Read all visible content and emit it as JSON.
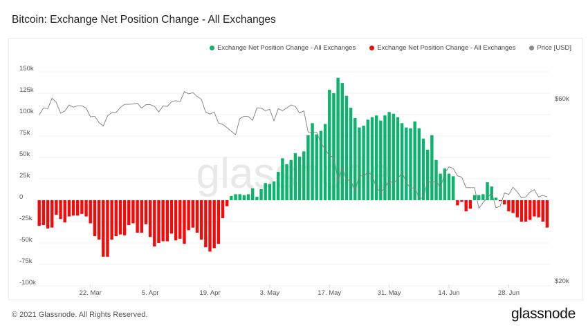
{
  "title": "Bitcoin: Exchange Net Position Change - All Exchanges",
  "footer": "© 2021 Glassnode. All Rights Reserved.",
  "logo": "glassnode",
  "watermark": "glassnode",
  "colors": {
    "positive": "#0bb36c",
    "negative": "#f50a0a",
    "price": "#8a8a8a"
  },
  "legend": [
    {
      "label": "Exchange Net Position Change - All Exchanges",
      "color": "#0bb36c"
    },
    {
      "label": "Exchange Net Position Change - All Exchanges",
      "color": "#f50a0a"
    },
    {
      "label": "Price [USD]",
      "color": "#8a8a8a"
    }
  ],
  "chart_data": {
    "type": "bar",
    "title": "Bitcoin: Exchange Net Position Change - All Exchanges",
    "legend_placement": "top-right",
    "grid": true,
    "x_ticks": [
      "22. Mar",
      "5. Apr",
      "19. Apr",
      "3. May",
      "17. May",
      "31. May",
      "14. Jun",
      "28. Jun"
    ],
    "x_tick_dates": [
      "2021-03-22",
      "2021-04-05",
      "2021-04-19",
      "2021-05-03",
      "2021-05-17",
      "2021-05-31",
      "2021-06-14",
      "2021-06-28"
    ],
    "y_left": {
      "ticks": [
        "150k",
        "125k",
        "100k",
        "75k",
        "50k",
        "25k",
        "0",
        "-25k",
        "-50k",
        "-75k",
        "-100k"
      ],
      "ylim": [
        -100000,
        150000
      ]
    },
    "y_right": {
      "ticks": [
        "$60k",
        "$20k"
      ],
      "tick_values": [
        60000,
        20000
      ],
      "scale": "log"
    },
    "x": [
      "2021-03-10",
      "2021-03-11",
      "2021-03-12",
      "2021-03-13",
      "2021-03-14",
      "2021-03-15",
      "2021-03-16",
      "2021-03-17",
      "2021-03-18",
      "2021-03-19",
      "2021-03-20",
      "2021-03-21",
      "2021-03-22",
      "2021-03-23",
      "2021-03-24",
      "2021-03-25",
      "2021-03-26",
      "2021-03-27",
      "2021-03-28",
      "2021-03-29",
      "2021-03-30",
      "2021-03-31",
      "2021-04-01",
      "2021-04-02",
      "2021-04-03",
      "2021-04-04",
      "2021-04-05",
      "2021-04-06",
      "2021-04-07",
      "2021-04-08",
      "2021-04-09",
      "2021-04-10",
      "2021-04-11",
      "2021-04-12",
      "2021-04-13",
      "2021-04-14",
      "2021-04-15",
      "2021-04-16",
      "2021-04-17",
      "2021-04-18",
      "2021-04-19",
      "2021-04-20",
      "2021-04-21",
      "2021-04-22",
      "2021-04-23",
      "2021-04-24",
      "2021-04-25",
      "2021-04-26",
      "2021-04-27",
      "2021-04-28",
      "2021-04-29",
      "2021-04-30",
      "2021-05-01",
      "2021-05-02",
      "2021-05-03",
      "2021-05-04",
      "2021-05-05",
      "2021-05-06",
      "2021-05-07",
      "2021-05-08",
      "2021-05-09",
      "2021-05-10",
      "2021-05-11",
      "2021-05-12",
      "2021-05-13",
      "2021-05-14",
      "2021-05-15",
      "2021-05-16",
      "2021-05-17",
      "2021-05-18",
      "2021-05-19",
      "2021-05-20",
      "2021-05-21",
      "2021-05-22",
      "2021-05-23",
      "2021-05-24",
      "2021-05-25",
      "2021-05-26",
      "2021-05-27",
      "2021-05-28",
      "2021-05-29",
      "2021-05-30",
      "2021-05-31",
      "2021-06-01",
      "2021-06-02",
      "2021-06-03",
      "2021-06-04",
      "2021-06-05",
      "2021-06-06",
      "2021-06-07",
      "2021-06-08",
      "2021-06-09",
      "2021-06-10",
      "2021-06-11",
      "2021-06-12",
      "2021-06-13",
      "2021-06-14",
      "2021-06-15",
      "2021-06-16",
      "2021-06-17",
      "2021-06-18",
      "2021-06-19",
      "2021-06-20",
      "2021-06-21",
      "2021-06-22",
      "2021-06-23",
      "2021-06-24",
      "2021-06-25",
      "2021-06-26",
      "2021-06-27",
      "2021-06-28",
      "2021-06-29",
      "2021-06-30",
      "2021-07-01",
      "2021-07-02",
      "2021-07-03",
      "2021-07-04",
      "2021-07-05",
      "2021-07-06",
      "2021-07-07"
    ],
    "series": [
      {
        "name": "Exchange Net Position Change - All Exchanges",
        "type": "bar",
        "axis": "left",
        "values": [
          -30000,
          -29000,
          -33000,
          -32000,
          -17000,
          -22000,
          -26000,
          -19000,
          -18000,
          -18000,
          -16000,
          -19000,
          -27000,
          -42000,
          -46000,
          -66000,
          -66000,
          -46000,
          -42000,
          -40000,
          -41000,
          -29000,
          -27000,
          -38000,
          -38000,
          -28000,
          -43000,
          -54000,
          -50000,
          -48000,
          -48000,
          -39000,
          -47000,
          -45000,
          -51000,
          -35000,
          -32000,
          -38000,
          -46000,
          -55000,
          -60000,
          -56000,
          -51000,
          -21000,
          -7000,
          5000,
          7000,
          7000,
          6000,
          7000,
          14000,
          4000,
          13000,
          20000,
          19000,
          22000,
          33000,
          49000,
          42000,
          47000,
          55000,
          51000,
          57000,
          76000,
          90000,
          77000,
          81000,
          89000,
          129000,
          125000,
          143000,
          137000,
          122000,
          108000,
          96000,
          85000,
          87000,
          94000,
          97000,
          99000,
          93000,
          99000,
          103000,
          101000,
          97000,
          90000,
          85000,
          84000,
          92000,
          84000,
          72000,
          59000,
          76000,
          47000,
          31000,
          37000,
          31000,
          28000,
          -6000,
          -2000,
          -13000,
          -10000,
          6000,
          6000,
          7000,
          21000,
          16000,
          3000,
          -1000,
          -5000,
          -13000,
          -15000,
          -20000,
          -25000,
          -25000,
          -23000,
          -19000,
          -20000,
          -25000,
          -32000
        ]
      },
      {
        "name": "Price [USD]",
        "type": "line",
        "axis": "right",
        "values": [
          54400,
          56800,
          56500,
          60200,
          58700,
          55000,
          55700,
          57800,
          57000,
          57500,
          57500,
          56700,
          53800,
          54000,
          52000,
          50900,
          54100,
          55200,
          55200,
          56900,
          58000,
          58000,
          58100,
          58400,
          56700,
          57900,
          57900,
          57300,
          55400,
          57400,
          57300,
          58900,
          59300,
          58900,
          62600,
          61800,
          62200,
          60800,
          59800,
          55300,
          54700,
          55400,
          51800,
          51400,
          50400,
          49300,
          48300,
          53200,
          54000,
          53900,
          52700,
          56800,
          56700,
          55800,
          56300,
          52500,
          56500,
          55800,
          56800,
          57800,
          57300,
          55000,
          55800,
          49100,
          49000,
          49000,
          45900,
          44300,
          42500,
          42300,
          36500,
          39600,
          36700,
          36800,
          34300,
          37900,
          37500,
          38600,
          37800,
          35100,
          34100,
          35100,
          36600,
          36000,
          37000,
          38500,
          36300,
          34900,
          35200,
          32900,
          33000,
          36600,
          36100,
          36600,
          35000,
          38300,
          39800,
          39400,
          37700,
          37400,
          35100,
          35100,
          35100,
          31000,
          32100,
          33000,
          34100,
          31100,
          31400,
          34000,
          33700,
          35200,
          34200,
          33000,
          33200,
          34200,
          34700,
          33200,
          33500,
          33200
        ]
      }
    ]
  }
}
